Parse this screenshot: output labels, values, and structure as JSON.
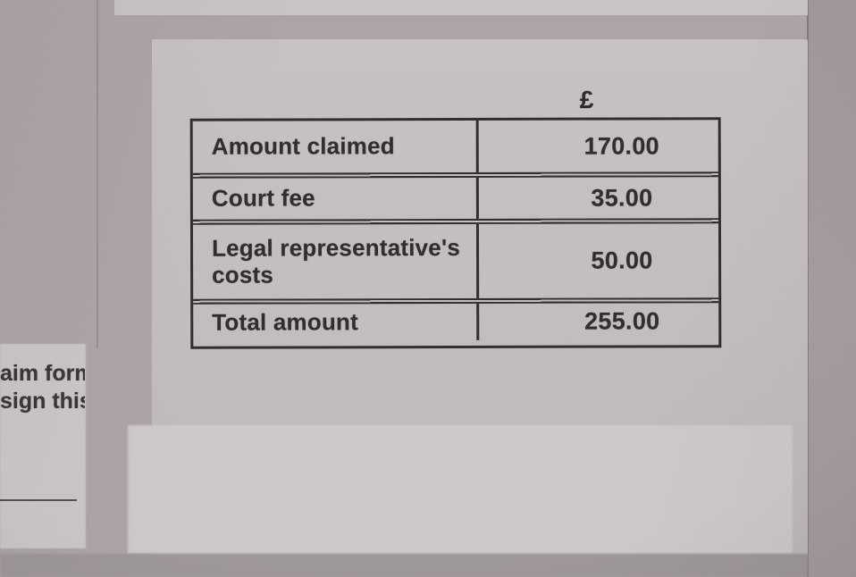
{
  "form": {
    "currency_symbol": "£",
    "fees_table": {
      "rows": [
        {
          "label": "Amount claimed",
          "value": "170.00"
        },
        {
          "label": "Court fee",
          "value": "35.00"
        },
        {
          "label": "Legal representative's costs",
          "value": "50.00"
        },
        {
          "label": "Total amount",
          "value": "255.00"
        }
      ]
    },
    "margin_note_lines": [
      "aim form",
      "sign this"
    ],
    "colors": {
      "ink": "#332d2f",
      "paper_light": "#c4bec0",
      "paper_shadow": "#aca4a5",
      "patch_white": "#cdc8c9"
    }
  }
}
